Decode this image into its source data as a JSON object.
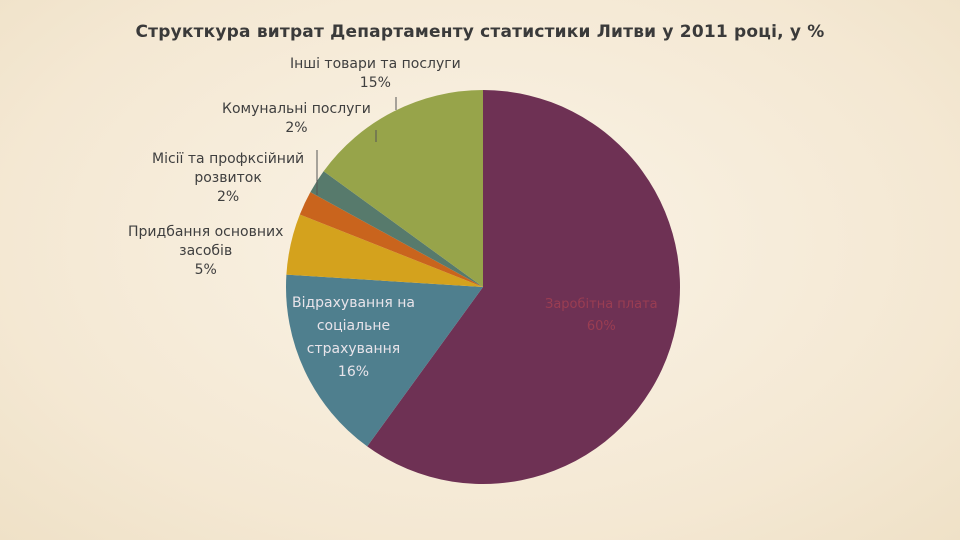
{
  "chart_data": {
    "type": "pie",
    "title": "Структкура витрат Департаменту статистики Литви у 2011 році, у %",
    "slices": [
      {
        "label": "Заробітна плата",
        "value": 60,
        "value_label": "60%",
        "color": "#6e3154"
      },
      {
        "label": "Відрахування на соціальне страхування",
        "value": 16,
        "value_label": "16%",
        "color": "#4f7f8e"
      },
      {
        "label": "Придбання основних засобів",
        "value": 5,
        "value_label": "5%",
        "color": "#d4a21d"
      },
      {
        "label": "Місії та профксійний розвиток",
        "value": 2,
        "value_label": "2%",
        "color": "#c9641d"
      },
      {
        "label": "Комунальні послуги",
        "value": 2,
        "value_label": "2%",
        "color": "#577a6c"
      },
      {
        "label": "Інші товари та послуги",
        "value": 15,
        "value_label": "15%",
        "color": "#97a44a"
      }
    ],
    "legend": "none"
  },
  "labels": {
    "other": [
      "Інші товари та послуги",
      "15%"
    ],
    "utilities": [
      "Комунальні послуги",
      "2%"
    ],
    "missions": [
      "Місії та профксійний",
      "розвиток",
      "2%"
    ],
    "assets": [
      "Придбання основних",
      "засобів",
      "5%"
    ],
    "social": [
      "Відрахування на",
      "соціальне",
      "страхування",
      "16%"
    ],
    "salary": [
      "Заробітна плата",
      "60%"
    ]
  }
}
